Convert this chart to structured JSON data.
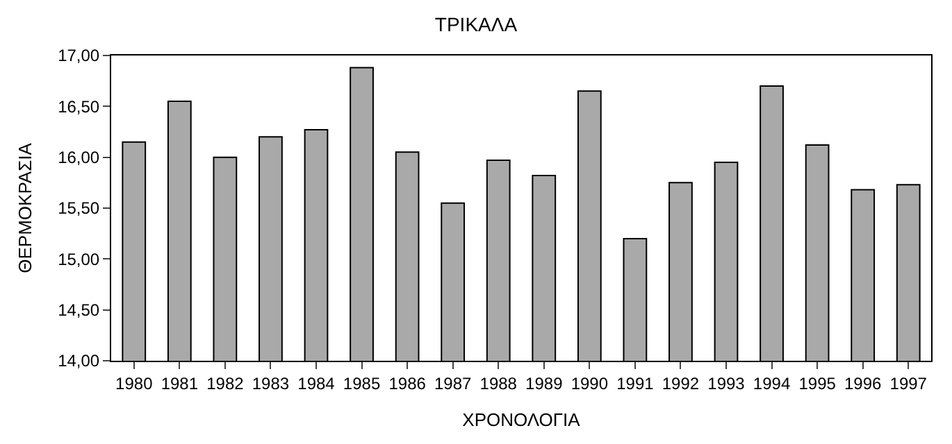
{
  "chart_data": {
    "type": "bar",
    "title": "ΤΡΙΚΑΛΑ",
    "xlabel": "ΧΡΟΝΟΛΟΓΙΑ",
    "ylabel": "ΘΕΡΜΟΚΡΑΣΙΑ",
    "categories": [
      "1980",
      "1981",
      "1982",
      "1983",
      "1984",
      "1985",
      "1986",
      "1987",
      "1988",
      "1989",
      "1990",
      "1991",
      "1992",
      "1993",
      "1994",
      "1995",
      "1996",
      "1997"
    ],
    "values": [
      16.15,
      16.55,
      16.0,
      16.2,
      16.27,
      16.88,
      16.05,
      15.55,
      15.97,
      15.82,
      16.65,
      15.2,
      15.75,
      15.95,
      16.7,
      16.12,
      15.68,
      15.73
    ],
    "color": "#a9a9a9",
    "ylim": [
      14,
      17
    ],
    "yticks": [
      {
        "value": 14,
        "label": "14,00"
      },
      {
        "value": 14.5,
        "label": "14,50"
      },
      {
        "value": 15,
        "label": "15,00"
      },
      {
        "value": 15.5,
        "label": "15,50"
      },
      {
        "value": 16,
        "label": "16,00"
      },
      {
        "value": 16.5,
        "label": "16,50"
      },
      {
        "value": 17,
        "label": "17,00"
      }
    ],
    "grid": false
  }
}
